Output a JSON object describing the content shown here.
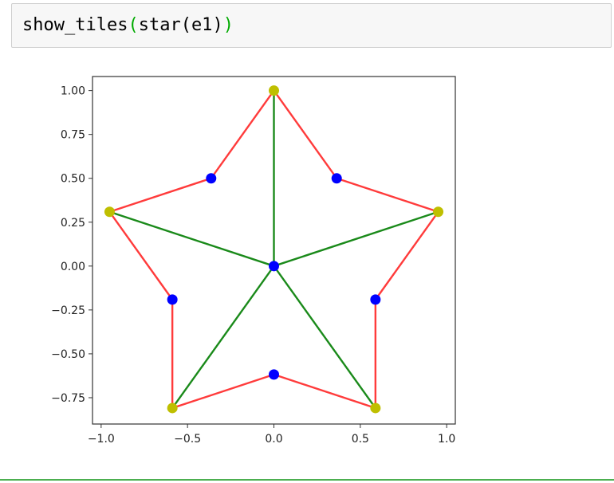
{
  "code_cell": {
    "fn_show": "show_tiles",
    "open_outer": "(",
    "fn_star": "star",
    "open_inner": "(",
    "arg": "e1",
    "close_inner": ")",
    "close_outer": ")"
  },
  "chart_data": {
    "type": "scatter",
    "xlim": [
      -1.05,
      1.05
    ],
    "ylim": [
      -0.9,
      1.08
    ],
    "x_ticks": [
      -1.0,
      -0.5,
      0.0,
      0.5,
      1.0
    ],
    "x_tick_labels": [
      "−1.0",
      "−0.5",
      "0.0",
      "0.5",
      "1.0"
    ],
    "y_ticks": [
      1.0,
      0.75,
      0.5,
      0.25,
      0.0,
      -0.25,
      -0.5,
      -0.75
    ],
    "y_tick_labels": [
      "1.00",
      "0.75",
      "0.50",
      "0.25",
      "0.00",
      "−0.25",
      "−0.50",
      "−0.75"
    ],
    "grid": false,
    "outline": {
      "color": "#ff3b3b",
      "points": [
        [
          0.0,
          1.0
        ],
        [
          0.3633,
          0.5
        ],
        [
          0.9511,
          0.309
        ],
        [
          0.5878,
          -0.191
        ],
        [
          0.5878,
          -0.809
        ],
        [
          0.0,
          -0.618
        ],
        [
          -0.5878,
          -0.809
        ],
        [
          -0.5878,
          -0.191
        ],
        [
          -0.9511,
          0.309
        ],
        [
          -0.3633,
          0.5
        ],
        [
          0.0,
          1.0
        ]
      ]
    },
    "spokes": {
      "color": "#1a8a1a",
      "center": [
        0.0,
        0.0
      ],
      "tips": [
        [
          0.0,
          1.0
        ],
        [
          0.9511,
          0.309
        ],
        [
          0.5878,
          -0.809
        ],
        [
          -0.5878,
          -0.809
        ],
        [
          -0.9511,
          0.309
        ]
      ]
    },
    "tip_points": {
      "color": "#bfbf00",
      "points": [
        [
          0.0,
          1.0
        ],
        [
          0.9511,
          0.309
        ],
        [
          0.5878,
          -0.809
        ],
        [
          -0.5878,
          -0.809
        ],
        [
          -0.9511,
          0.309
        ]
      ]
    },
    "inner_points": {
      "color": "#0000ff",
      "points": [
        [
          0.3633,
          0.5
        ],
        [
          0.5878,
          -0.191
        ],
        [
          0.0,
          -0.618
        ],
        [
          -0.5878,
          -0.191
        ],
        [
          -0.3633,
          0.5
        ],
        [
          0.0,
          0.0
        ]
      ]
    }
  }
}
